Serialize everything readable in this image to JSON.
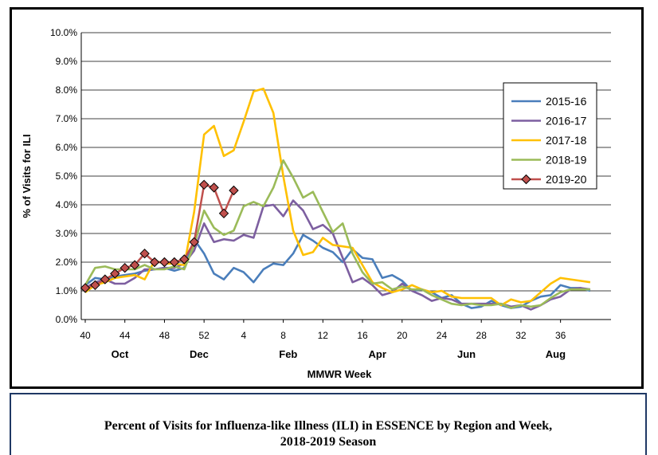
{
  "chart_data": {
    "type": "line",
    "title": "",
    "xlabel": "MMWR Week",
    "ylabel": "% of Visits for ILI",
    "ylim": [
      0,
      10
    ],
    "yticks": [
      "0.0%",
      "1.0%",
      "2.0%",
      "3.0%",
      "4.0%",
      "5.0%",
      "6.0%",
      "7.0%",
      "8.0%",
      "9.0%",
      "10.0%"
    ],
    "week_labels": [
      "40",
      "44",
      "48",
      "52",
      "4",
      "8",
      "12",
      "16",
      "20",
      "24",
      "28",
      "32",
      "36"
    ],
    "month_labels": [
      "Oct",
      "Dec",
      "Feb",
      "Apr",
      "Jun",
      "Aug"
    ],
    "grid": "horizontal",
    "legend_position": "right",
    "series": [
      {
        "name": "2015-16",
        "color": "#4a7ebb",
        "markers": false,
        "values": [
          1.2,
          1.45,
          1.4,
          1.5,
          1.55,
          1.6,
          1.7,
          1.75,
          1.8,
          1.7,
          1.8,
          2.8,
          2.3,
          1.6,
          1.4,
          1.8,
          1.65,
          1.3,
          1.75,
          1.95,
          1.9,
          2.3,
          2.95,
          2.75,
          2.5,
          2.35,
          2.0,
          2.45,
          2.15,
          2.1,
          1.45,
          1.55,
          1.35,
          1.0,
          1.05,
          0.95,
          0.75,
          0.85,
          0.55,
          0.4,
          0.45,
          0.65,
          0.5,
          0.4,
          0.45,
          0.65,
          0.8,
          0.85,
          1.2,
          1.1,
          1.1,
          1.0
        ]
      },
      {
        "name": "2016-17",
        "color": "#7d5fa0",
        "markers": false,
        "values": [
          1.1,
          1.3,
          1.4,
          1.25,
          1.25,
          1.45,
          1.75,
          1.75,
          1.8,
          1.8,
          1.95,
          2.4,
          3.35,
          2.7,
          2.8,
          2.75,
          2.95,
          2.85,
          3.95,
          4.0,
          3.6,
          4.15,
          3.8,
          3.15,
          3.3,
          3.0,
          2.15,
          1.3,
          1.45,
          1.2,
          0.85,
          0.95,
          1.25,
          1.0,
          0.85,
          0.65,
          0.75,
          0.7,
          0.55,
          0.55,
          0.55,
          0.55,
          0.55,
          0.45,
          0.5,
          0.35,
          0.5,
          0.7,
          0.8,
          1.05,
          1.1,
          1.05
        ]
      },
      {
        "name": "2017-18",
        "color": "#ffc000",
        "markers": false,
        "values": [
          0.95,
          1.2,
          1.3,
          1.45,
          1.5,
          1.55,
          1.4,
          2.05,
          1.95,
          1.95,
          1.9,
          3.75,
          6.45,
          6.75,
          5.7,
          5.9,
          6.9,
          7.95,
          8.05,
          7.2,
          5.0,
          3.1,
          2.25,
          2.35,
          2.85,
          2.6,
          2.55,
          2.5,
          1.9,
          1.3,
          1.1,
          0.95,
          1.05,
          1.2,
          1.05,
          0.95,
          1.0,
          0.8,
          0.75,
          0.75,
          0.75,
          0.75,
          0.5,
          0.7,
          0.6,
          0.65,
          0.95,
          1.25,
          1.45,
          1.4,
          1.35,
          1.3
        ]
      },
      {
        "name": "2018-19",
        "color": "#9bbb59",
        "markers": false,
        "values": [
          1.2,
          1.8,
          1.85,
          1.75,
          1.75,
          1.75,
          1.9,
          1.75,
          1.75,
          1.85,
          1.75,
          2.6,
          3.8,
          3.2,
          2.95,
          3.1,
          3.95,
          4.1,
          3.95,
          4.6,
          5.55,
          4.95,
          4.25,
          4.45,
          3.75,
          3.05,
          3.35,
          2.3,
          1.65,
          1.25,
          1.3,
          1.05,
          1.15,
          1.05,
          1.05,
          0.85,
          0.7,
          0.55,
          0.5,
          0.55,
          0.5,
          0.5,
          0.55,
          0.4,
          0.5,
          0.45,
          0.5,
          0.75,
          0.95,
          1.05,
          1.05,
          1.05
        ]
      },
      {
        "name": "2019-20",
        "color": "#c0504d",
        "markers": true,
        "values": [
          1.1,
          1.2,
          1.4,
          1.6,
          1.8,
          1.9,
          2.3,
          2.0,
          2.0,
          2.0,
          2.1,
          2.7,
          4.7,
          4.6,
          3.7,
          4.5
        ]
      }
    ]
  },
  "caption": {
    "line1": "Percent of Visits for Influenza-like Illness (ILI) in ESSENCE by Region and Week,",
    "line2": "2018-2019 Season"
  }
}
